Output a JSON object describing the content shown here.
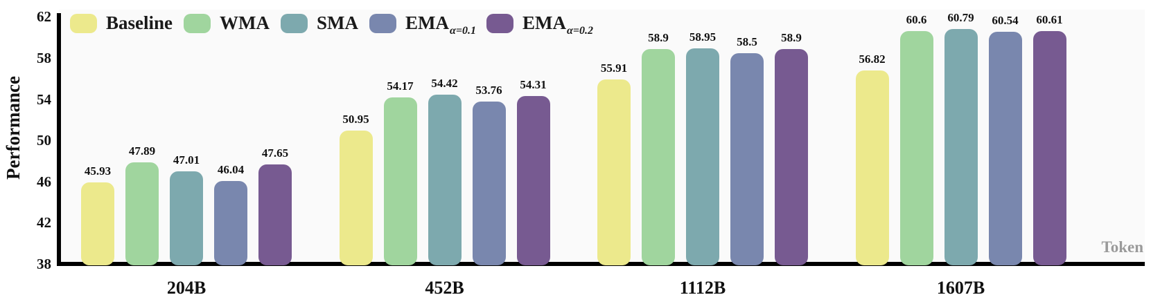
{
  "chart_data": {
    "type": "bar",
    "title": "",
    "xlabel": "Token",
    "ylabel": "Performance",
    "ylim": [
      38,
      62
    ],
    "yticks": [
      38,
      42,
      46,
      50,
      54,
      58,
      62
    ],
    "categories": [
      "204B",
      "452B",
      "1112B",
      "1607B"
    ],
    "series": [
      {
        "name": "Baseline",
        "sub": "",
        "color": "#ECE98C",
        "values": [
          45.93,
          50.95,
          55.91,
          56.82
        ]
      },
      {
        "name": "WMA",
        "sub": "",
        "color": "#A0D59E",
        "values": [
          47.89,
          54.17,
          58.9,
          60.6
        ]
      },
      {
        "name": "SMA",
        "sub": "",
        "color": "#7DA9AE",
        "values": [
          47.01,
          54.42,
          58.95,
          60.79
        ]
      },
      {
        "name": "EMA",
        "sub": "α=0.1",
        "color": "#7987AE",
        "values": [
          46.04,
          53.76,
          58.5,
          60.54
        ]
      },
      {
        "name": "EMA",
        "sub": "α=0.2",
        "color": "#775A91",
        "values": [
          47.65,
          54.31,
          58.9,
          60.61
        ]
      }
    ],
    "legend_position": "top-left",
    "grid": false,
    "value_labels": true,
    "axis_color": "#000000",
    "xlabel_color": "#9a9a9a",
    "plot_background": "#fafafa"
  }
}
